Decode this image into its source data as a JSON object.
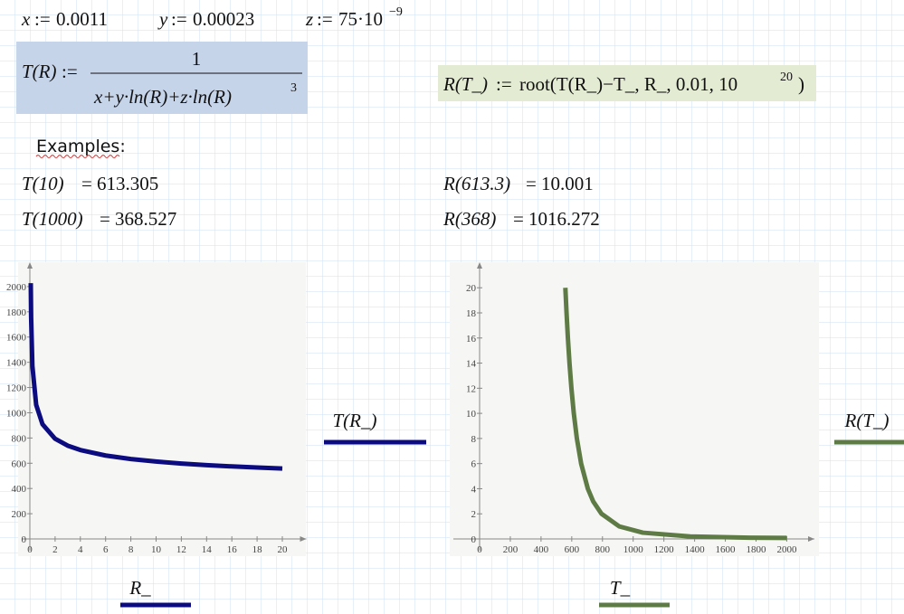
{
  "document": {
    "assign": ":=",
    "equals": "=",
    "definitions": [
      {
        "name": "x",
        "value": "0.0011"
      },
      {
        "name": "y",
        "value": "0.00023"
      },
      {
        "name": "z",
        "value": "75·10",
        "exponent": "−9"
      }
    ],
    "function_T": {
      "lhs": "T(R)",
      "numerator": "1",
      "denominator": "x+y·ln(R)+z·ln(R)",
      "exponent": "3"
    },
    "function_R": {
      "lhs": "R(T_)",
      "rhs": "root(T(R_)−T_, R_, 0.01, 10",
      "exponent": "20",
      "close": ")"
    },
    "examples_heading": "Examples:",
    "examples": [
      {
        "expr": "T(10)",
        "result": "613.305"
      },
      {
        "expr": "T(1000)",
        "result": "368.527"
      },
      {
        "expr": "R(613.3)",
        "result": "10.001"
      },
      {
        "expr": "R(368)",
        "result": "1016.272"
      }
    ]
  },
  "chart_data": [
    {
      "type": "line",
      "x_label": "R_",
      "x": [
        0.072,
        0.1,
        0.2,
        0.5,
        1,
        2,
        3,
        4,
        6,
        8,
        10,
        12,
        14,
        16,
        18,
        20
      ],
      "series": [
        {
          "name": "T(R_)",
          "color": "#0c0c80",
          "values": [
            2027,
            1756,
            1371,
            1063,
            909.1,
            794,
            739.2,
            704.7,
            661.1,
            633.3,
            613.3,
            597.8,
            585.3,
            574.9,
            566.1,
            558.3
          ]
        }
      ],
      "xlim": [
        0,
        21.9
      ],
      "ylim": [
        0,
        2150
      ],
      "xticks": [
        0,
        2,
        4,
        6,
        8,
        10,
        12,
        14,
        16,
        18,
        20
      ],
      "yticks": [
        0,
        200,
        400,
        600,
        800,
        1000,
        1200,
        1400,
        1600,
        1800,
        2000
      ]
    },
    {
      "type": "line",
      "x_label": "T_",
      "x": [
        558.3,
        566.1,
        574.9,
        585.3,
        597.8,
        613.3,
        633.3,
        661.1,
        704.7,
        739.2,
        794,
        909.1,
        1063,
        1371,
        1756,
        2000
      ],
      "series": [
        {
          "name": "R(T_)",
          "color": "#5e7a45",
          "values": [
            20,
            18,
            16,
            14,
            12,
            10,
            8,
            6,
            4,
            3,
            2,
            1,
            0.5,
            0.2,
            0.1,
            0.078
          ]
        }
      ],
      "xlim": [
        0,
        2180
      ],
      "ylim": [
        0,
        21.6
      ],
      "xticks": [
        0,
        200,
        400,
        600,
        800,
        1000,
        1200,
        1400,
        1600,
        1800,
        2000
      ],
      "yticks": [
        0,
        2,
        4,
        6,
        8,
        10,
        12,
        14,
        16,
        18,
        20
      ]
    }
  ]
}
